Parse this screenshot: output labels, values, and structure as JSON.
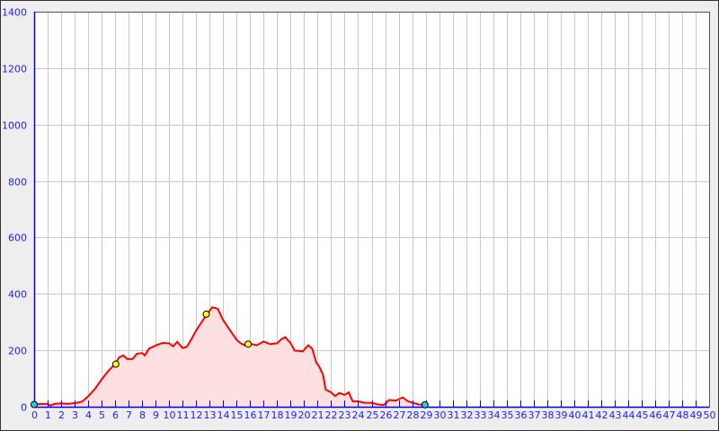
{
  "chart_data": {
    "type": "area",
    "title": "",
    "xlabel": "",
    "ylabel": "",
    "xlim": [
      0,
      50
    ],
    "ylim": [
      0,
      1400
    ],
    "grid": true,
    "x_ticks": [
      0,
      1,
      2,
      3,
      4,
      5,
      6,
      7,
      8,
      9,
      10,
      11,
      12,
      13,
      14,
      15,
      16,
      17,
      18,
      19,
      20,
      21,
      22,
      23,
      24,
      25,
      26,
      27,
      28,
      29,
      30,
      31,
      32,
      33,
      34,
      35,
      36,
      37,
      38,
      39,
      40,
      41,
      42,
      43,
      44,
      45,
      46,
      47,
      48,
      49,
      50
    ],
    "y_ticks": [
      0,
      200,
      400,
      600,
      800,
      1000,
      1200,
      1400
    ],
    "colors": {
      "line": "#ff0000",
      "fill": "#ffe0e0",
      "axis": "#0000ff",
      "grid": "#c8c8c8",
      "marker_end": "#22ccee",
      "marker_mid": "#ffff00"
    },
    "series": [
      {
        "x": [
          0,
          0.5,
          1,
          1.2,
          1.5,
          2,
          2.5,
          3,
          3.4,
          3.6,
          4,
          4.5,
          5,
          5.5,
          6,
          6.3,
          6.6,
          6.9,
          7.3,
          7.6,
          8,
          8.2,
          8.5,
          9,
          9.5,
          10,
          10.3,
          10.6,
          11,
          11.3,
          11.6,
          12,
          12.5,
          12.8,
          13.2,
          13.6,
          14,
          14.4,
          15,
          15.3,
          15.6,
          16,
          16.5,
          17,
          17.5,
          18,
          18.3,
          18.6,
          19,
          19.3,
          19.6,
          19.9,
          20.3,
          20.6,
          20.9,
          21.1,
          21.4,
          21.6,
          22,
          22.3,
          22.6,
          23,
          23.3,
          23.6,
          24,
          24.5,
          25,
          25.5,
          25.9,
          26.3,
          26.8,
          27.3,
          27.7,
          28,
          28.5,
          28.95
        ],
        "y": [
          8,
          10,
          10,
          4,
          10,
          12,
          10,
          13,
          16,
          20,
          37,
          63,
          97,
          127,
          151,
          175,
          182,
          169,
          169,
          188,
          190,
          182,
          206,
          217,
          226,
          225,
          214,
          230,
          208,
          212,
          235,
          270,
          307,
          328,
          353,
          347,
          307,
          279,
          237,
          225,
          218,
          223,
          218,
          231,
          222,
          225,
          239,
          247,
          225,
          199,
          198,
          196,
          218,
          206,
          157,
          144,
          114,
          61,
          51,
          38,
          49,
          42,
          51,
          19,
          19,
          14,
          14,
          8,
          6,
          24,
          22,
          33,
          19,
          15,
          8,
          7
        ]
      }
    ],
    "markers": [
      {
        "x": 0,
        "y": 8,
        "kind": "end"
      },
      {
        "x": 6.05,
        "y": 151,
        "kind": "mid"
      },
      {
        "x": 12.75,
        "y": 328,
        "kind": "mid"
      },
      {
        "x": 15.85,
        "y": 222,
        "kind": "mid"
      },
      {
        "x": 28.95,
        "y": 7,
        "kind": "end"
      }
    ]
  }
}
